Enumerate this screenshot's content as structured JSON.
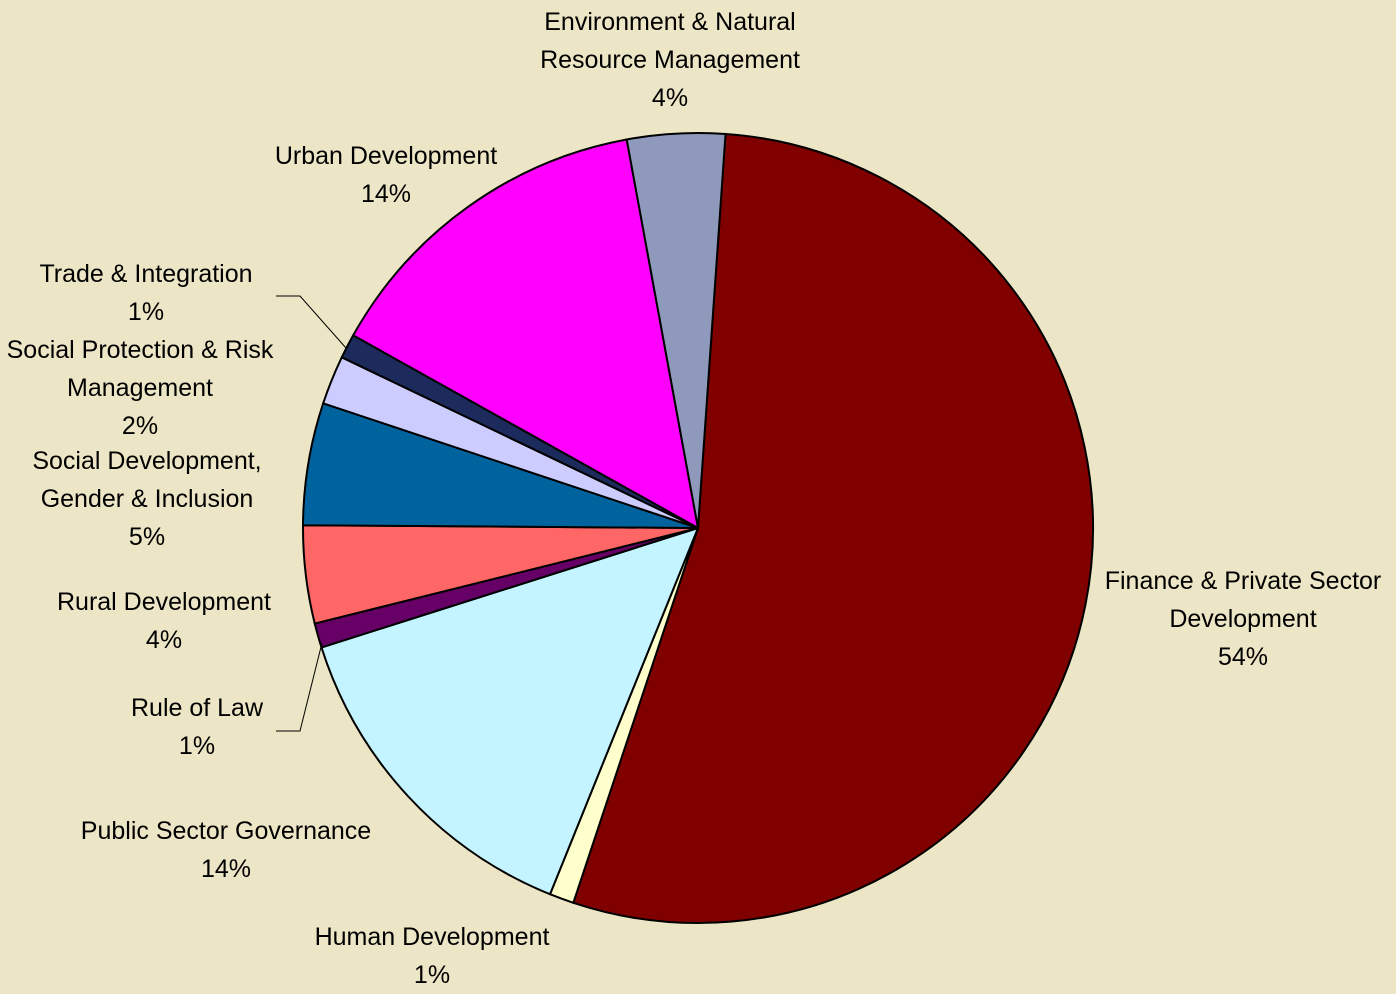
{
  "chart_data": {
    "type": "pie",
    "categories": [
      "Finance & Private Sector Development",
      "Human Development",
      "Public Sector Governance",
      "Rule of Law",
      "Rural Development",
      "Social Development, Gender & Inclusion",
      "Social Protection & Risk Management",
      "Trade & Integration",
      "Urban Development",
      "Environment & Natural Resource Management"
    ],
    "values": [
      54,
      1,
      14,
      1,
      4,
      5,
      2,
      1,
      14,
      4
    ],
    "value_labels": [
      "54%",
      "1%",
      "14%",
      "1%",
      "4%",
      "5%",
      "2%",
      "1%",
      "14%",
      "4%"
    ],
    "colors": [
      "#800000",
      "#ffffcc",
      "#c4f4ff",
      "#660066",
      "#ff6666",
      "#00639e",
      "#ccccff",
      "#1c2a5c",
      "#ff00ff",
      "#8f99bb"
    ]
  }
}
